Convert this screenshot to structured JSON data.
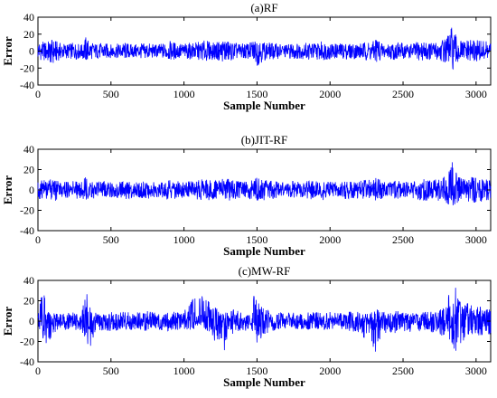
{
  "chart_data": [
    {
      "type": "line",
      "title": "(a)RF",
      "xlabel": "Sample Number",
      "ylabel": "Error",
      "xlim": [
        0,
        3100
      ],
      "ylim": [
        -40,
        40
      ],
      "xticks": [
        0,
        500,
        1000,
        1500,
        2000,
        2500,
        3000
      ],
      "yticks": [
        -40,
        -20,
        0,
        20,
        40
      ],
      "grid": false,
      "color": "#0000ff",
      "x": [
        0,
        50,
        100,
        150,
        200,
        250,
        300,
        330,
        350,
        400,
        450,
        500,
        550,
        600,
        650,
        700,
        750,
        800,
        850,
        900,
        950,
        1000,
        1050,
        1100,
        1150,
        1200,
        1250,
        1280,
        1300,
        1350,
        1400,
        1450,
        1490,
        1500,
        1550,
        1600,
        1650,
        1700,
        1750,
        1800,
        1850,
        1900,
        1950,
        2000,
        2050,
        2100,
        2150,
        2200,
        2250,
        2300,
        2320,
        2350,
        2400,
        2450,
        2500,
        2550,
        2600,
        2650,
        2700,
        2750,
        2800,
        2830,
        2850,
        2880,
        2900,
        2950,
        3000,
        3050,
        3100
      ],
      "y_upper": [
        12,
        11,
        14,
        10,
        9,
        10,
        8,
        18,
        12,
        9,
        10,
        8,
        9,
        10,
        8,
        9,
        10,
        8,
        9,
        12,
        10,
        9,
        10,
        11,
        13,
        10,
        12,
        17,
        12,
        10,
        9,
        10,
        15,
        20,
        11,
        10,
        9,
        8,
        10,
        9,
        11,
        10,
        12,
        10,
        9,
        10,
        9,
        10,
        11,
        12,
        21,
        10,
        9,
        11,
        10,
        9,
        11,
        12,
        10,
        13,
        16,
        30,
        22,
        15,
        12,
        13,
        14,
        12,
        11
      ],
      "y_lower": [
        -10,
        -12,
        -17,
        -10,
        -9,
        -10,
        -9,
        -14,
        -10,
        -9,
        -10,
        -8,
        -9,
        -10,
        -8,
        -9,
        -10,
        -8,
        -9,
        -11,
        -10,
        -9,
        -10,
        -11,
        -12,
        -10,
        -12,
        -14,
        -13,
        -10,
        -9,
        -10,
        -13,
        -18,
        -11,
        -10,
        -9,
        -8,
        -10,
        -9,
        -11,
        -10,
        -11,
        -10,
        -9,
        -10,
        -9,
        -10,
        -11,
        -12,
        -15,
        -10,
        -9,
        -11,
        -10,
        -9,
        -11,
        -12,
        -10,
        -12,
        -14,
        -20,
        -27,
        -14,
        -12,
        -13,
        -14,
        -12,
        -11
      ]
    },
    {
      "type": "line",
      "title": "(b)JIT-RF",
      "xlabel": "Sample Number",
      "ylabel": "Error",
      "xlim": [
        0,
        3100
      ],
      "ylim": [
        -40,
        40
      ],
      "xticks": [
        0,
        500,
        1000,
        1500,
        2000,
        2500,
        3000
      ],
      "yticks": [
        -40,
        -20,
        0,
        20,
        40
      ],
      "grid": false,
      "color": "#0000ff",
      "x": [
        0,
        50,
        100,
        150,
        200,
        250,
        300,
        330,
        350,
        400,
        450,
        500,
        550,
        600,
        650,
        700,
        750,
        800,
        850,
        900,
        950,
        1000,
        1050,
        1100,
        1150,
        1200,
        1250,
        1280,
        1300,
        1350,
        1400,
        1450,
        1490,
        1500,
        1550,
        1600,
        1650,
        1700,
        1750,
        1800,
        1850,
        1900,
        1950,
        2000,
        2050,
        2100,
        2150,
        2200,
        2250,
        2300,
        2320,
        2350,
        2400,
        2450,
        2500,
        2550,
        2600,
        2650,
        2700,
        2750,
        2800,
        2830,
        2850,
        2880,
        2900,
        2950,
        3000,
        3050,
        3100
      ],
      "y_upper": [
        9,
        10,
        11,
        9,
        8,
        9,
        8,
        14,
        10,
        8,
        9,
        8,
        8,
        9,
        8,
        8,
        9,
        8,
        8,
        10,
        9,
        8,
        9,
        10,
        11,
        9,
        10,
        13,
        11,
        9,
        8,
        9,
        12,
        15,
        10,
        9,
        8,
        8,
        9,
        8,
        10,
        9,
        10,
        9,
        8,
        9,
        8,
        9,
        10,
        11,
        17,
        9,
        8,
        10,
        9,
        8,
        10,
        11,
        9,
        12,
        15,
        31,
        20,
        14,
        11,
        12,
        13,
        11,
        10
      ],
      "y_lower": [
        -9,
        -10,
        -12,
        -9,
        -8,
        -9,
        -8,
        -12,
        -9,
        -8,
        -9,
        -8,
        -8,
        -9,
        -8,
        -8,
        -9,
        -8,
        -8,
        -10,
        -9,
        -8,
        -9,
        -10,
        -11,
        -9,
        -10,
        -12,
        -11,
        -9,
        -8,
        -9,
        -11,
        -13,
        -10,
        -9,
        -8,
        -8,
        -9,
        -8,
        -10,
        -9,
        -10,
        -9,
        -8,
        -9,
        -8,
        -9,
        -10,
        -11,
        -12,
        -9,
        -8,
        -10,
        -9,
        -8,
        -10,
        -11,
        -9,
        -11,
        -13,
        -18,
        -19,
        -13,
        -11,
        -12,
        -13,
        -11,
        -10
      ]
    },
    {
      "type": "line",
      "title": "(c)MW-RF",
      "xlabel": "Sample Number",
      "ylabel": "Error",
      "xlim": [
        0,
        3100
      ],
      "ylim": [
        -40,
        40
      ],
      "xticks": [
        0,
        500,
        1000,
        1500,
        2000,
        2500,
        3000
      ],
      "yticks": [
        -40,
        -20,
        0,
        20,
        40
      ],
      "grid": false,
      "color": "#0000ff",
      "x": [
        0,
        20,
        40,
        60,
        100,
        150,
        200,
        250,
        300,
        330,
        350,
        370,
        400,
        450,
        500,
        550,
        600,
        650,
        700,
        750,
        800,
        850,
        900,
        950,
        1000,
        1050,
        1080,
        1110,
        1150,
        1200,
        1250,
        1270,
        1300,
        1350,
        1400,
        1450,
        1480,
        1500,
        1550,
        1600,
        1650,
        1700,
        1750,
        1800,
        1850,
        1900,
        1950,
        2000,
        2050,
        2100,
        2150,
        2200,
        2250,
        2290,
        2320,
        2350,
        2400,
        2450,
        2500,
        2550,
        2600,
        2650,
        2700,
        2750,
        2800,
        2830,
        2860,
        2900,
        2950,
        3000,
        3050,
        3100
      ],
      "y_upper": [
        5,
        25,
        30,
        10,
        8,
        7,
        8,
        9,
        10,
        32,
        20,
        12,
        8,
        7,
        9,
        8,
        10,
        8,
        9,
        10,
        9,
        8,
        10,
        9,
        10,
        20,
        25,
        24,
        28,
        15,
        12,
        10,
        14,
        12,
        10,
        9,
        30,
        25,
        12,
        10,
        9,
        8,
        9,
        8,
        10,
        9,
        8,
        9,
        8,
        9,
        10,
        9,
        8,
        10,
        12,
        9,
        8,
        10,
        9,
        10,
        8,
        9,
        10,
        12,
        15,
        40,
        36,
        15,
        18,
        16,
        15,
        13
      ],
      "y_lower": [
        -6,
        -10,
        -20,
        -28,
        -12,
        -10,
        -9,
        -10,
        -10,
        -18,
        -30,
        -25,
        -10,
        -9,
        -10,
        -9,
        -10,
        -9,
        -10,
        -10,
        -9,
        -9,
        -10,
        -9,
        -10,
        -12,
        -5,
        -3,
        -8,
        -18,
        -28,
        -33,
        -15,
        -12,
        -10,
        -9,
        -12,
        -22,
        -13,
        -10,
        -9,
        -8,
        -9,
        -8,
        -10,
        -9,
        -8,
        -9,
        -8,
        -9,
        -10,
        -12,
        -20,
        -30,
        -40,
        -15,
        -10,
        -12,
        -10,
        -11,
        -9,
        -10,
        -12,
        -14,
        -16,
        -20,
        -37,
        -22,
        -15,
        -14,
        -16,
        -14
      ]
    }
  ]
}
